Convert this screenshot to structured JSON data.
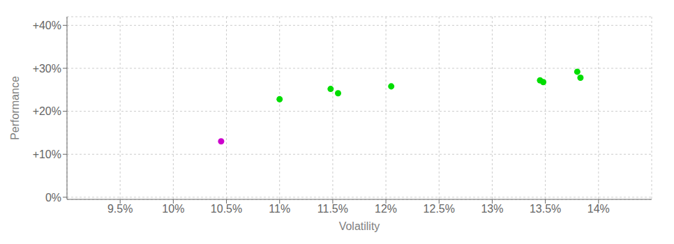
{
  "chart_data": {
    "type": "scatter",
    "x_label": "Volatility",
    "y_label": "Performance",
    "xlim": [
      0.09,
      0.145
    ],
    "ylim": [
      -0.005,
      0.42
    ],
    "xticks": [
      {
        "value": 0.095,
        "label": "9.5%"
      },
      {
        "value": 0.1,
        "label": "10%"
      },
      {
        "value": 0.105,
        "label": "10.5%"
      },
      {
        "value": 0.11,
        "label": "11%"
      },
      {
        "value": 0.115,
        "label": "11.5%"
      },
      {
        "value": 0.12,
        "label": "12%"
      },
      {
        "value": 0.125,
        "label": "12.5%"
      },
      {
        "value": 0.13,
        "label": "13%"
      },
      {
        "value": 0.135,
        "label": "13.5%"
      },
      {
        "value": 0.14,
        "label": "14%"
      }
    ],
    "yticks": [
      {
        "value": 0.0,
        "label": "0%"
      },
      {
        "value": 0.1,
        "label": "+10%"
      },
      {
        "value": 0.2,
        "label": "+20%"
      },
      {
        "value": 0.3,
        "label": "+30%"
      },
      {
        "value": 0.4,
        "label": "+40%"
      }
    ],
    "grid": true,
    "series": [
      {
        "color": "#00dd00",
        "x": [
          0.11,
          0.1148,
          0.1155,
          0.1205,
          0.1345,
          0.1348,
          0.138,
          0.1383
        ],
        "values": [
          0.228,
          0.252,
          0.242,
          0.258,
          0.272,
          0.268,
          0.292,
          0.278
        ]
      },
      {
        "color": "#cc00cc",
        "x": [
          0.1045
        ],
        "values": [
          0.13
        ]
      }
    ]
  }
}
